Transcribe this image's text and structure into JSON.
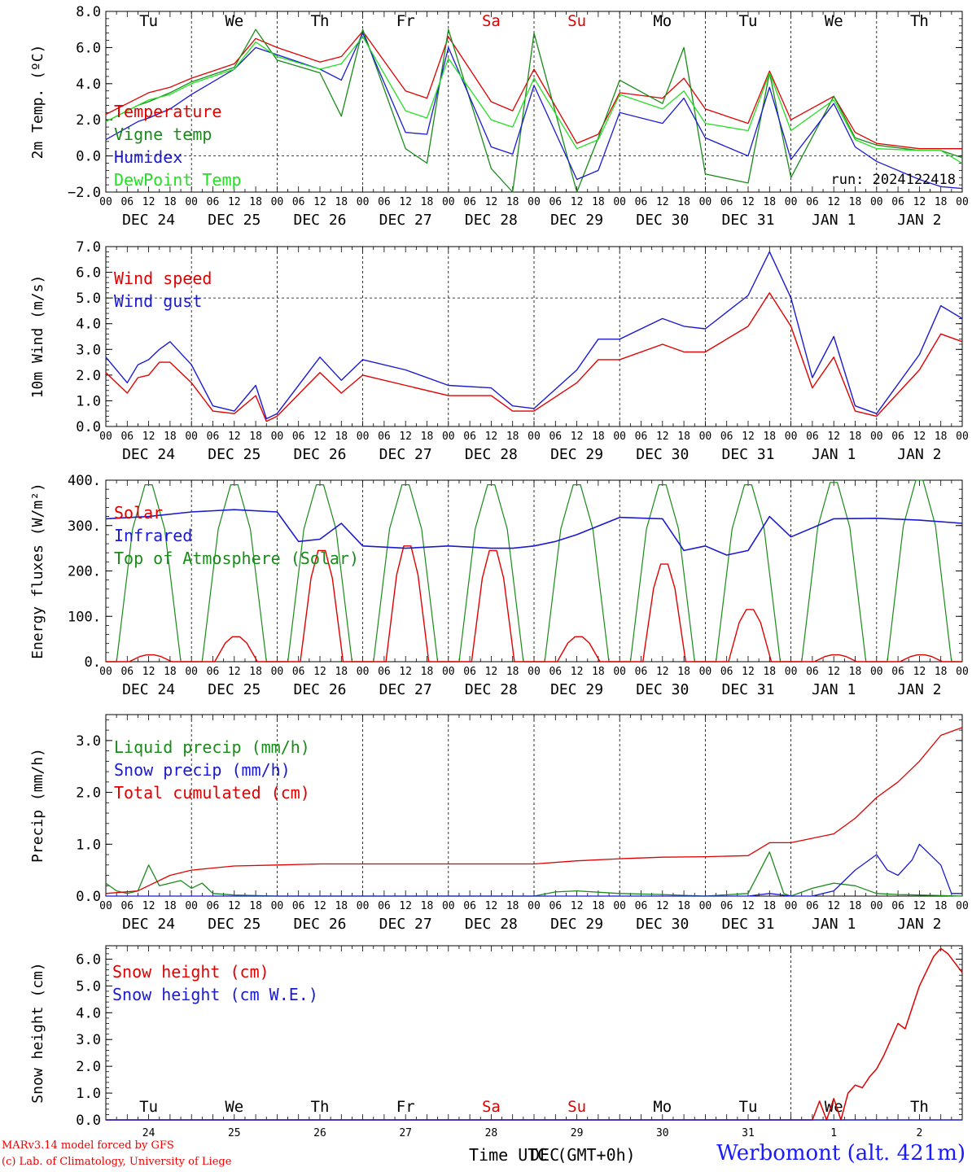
{
  "chart_data": [
    {
      "type": "line",
      "ylabel": "2m Temp. (ºC)",
      "ylim": [
        -2,
        8
      ],
      "y_ticks": [
        "8.0",
        "6.0",
        "4.0",
        "2.0",
        "0.0",
        "−2.0"
      ],
      "y_tick_values": [
        8,
        6,
        4,
        2,
        0,
        -2
      ],
      "ref_lines": [
        0
      ],
      "weekdays": [
        "Tu",
        "We",
        "Th",
        "Fr",
        "Sa",
        "Su",
        "Mo",
        "Tu",
        "We",
        "Th"
      ],
      "weekday_colors": [
        "#000000",
        "#000000",
        "#000000",
        "#000000",
        "#e00000",
        "#e00000",
        "#000000",
        "#000000",
        "#000000",
        "#000000"
      ],
      "run_label": "run: 2024122418",
      "x_hours": [
        0,
        9,
        12,
        18,
        24,
        36,
        42,
        48,
        60,
        66,
        72,
        84,
        90,
        96,
        108,
        114,
        120,
        132,
        138,
        144,
        156,
        162,
        168,
        180,
        186,
        192,
        204,
        210,
        216,
        228,
        234,
        240
      ],
      "series": [
        {
          "name": "Temperature",
          "color": "#e00000",
          "values": [
            2.3,
            3.2,
            3.5,
            3.8,
            4.3,
            5.1,
            6.5,
            6.0,
            5.2,
            5.5,
            6.9,
            3.6,
            3.2,
            6.6,
            3.0,
            2.5,
            4.8,
            0.7,
            1.2,
            3.5,
            3.2,
            4.3,
            2.6,
            1.8,
            4.7,
            2.0,
            3.3,
            1.3,
            0.7,
            0.4,
            0.4,
            0.4
          ]
        },
        {
          "name": "Vigne temp",
          "color": "#1a8a1a",
          "values": [
            1.9,
            2.8,
            3.0,
            3.5,
            4.1,
            4.9,
            7.0,
            5.3,
            4.6,
            2.2,
            7.0,
            0.4,
            -0.4,
            7.0,
            -0.7,
            -2.0,
            6.8,
            -2.0,
            1.0,
            4.2,
            2.9,
            6.0,
            -1.0,
            -1.5,
            4.6,
            -1.2,
            3.3,
            1.0,
            0.6,
            0.3,
            0.3,
            -0.1
          ]
        },
        {
          "name": "Humidex",
          "color": "#1a1ad0",
          "values": [
            0.9,
            1.9,
            2.1,
            2.6,
            3.4,
            4.8,
            6.0,
            5.6,
            4.8,
            4.2,
            6.8,
            1.3,
            1.2,
            6.0,
            0.5,
            0.1,
            3.9,
            -1.3,
            -0.8,
            2.4,
            1.8,
            3.2,
            1.0,
            0.0,
            3.8,
            -0.2,
            2.9,
            0.5,
            -0.3,
            -1.3,
            -1.7,
            -1.8
          ]
        },
        {
          "name": "DewPoint Temp",
          "color": "#22e022",
          "values": [
            1.9,
            2.8,
            3.1,
            3.4,
            4.0,
            4.8,
            6.3,
            5.5,
            4.8,
            5.1,
            6.6,
            2.5,
            2.1,
            5.4,
            2.0,
            1.6,
            4.3,
            0.4,
            0.9,
            3.4,
            2.6,
            3.6,
            1.8,
            1.4,
            4.6,
            1.4,
            3.1,
            0.9,
            0.4,
            0.3,
            0.3,
            -0.4
          ]
        }
      ]
    },
    {
      "type": "line",
      "ylabel": "10m Wind (m/s)",
      "ylim": [
        0,
        7
      ],
      "y_ticks": [
        "7.0",
        "6.0",
        "5.0",
        "4.0",
        "3.0",
        "2.0",
        "1.0",
        "0.0"
      ],
      "y_tick_values": [
        7,
        6,
        5,
        4,
        3,
        2,
        1,
        0
      ],
      "ref_lines": [
        5
      ],
      "x_hours": [
        0,
        6,
        9,
        12,
        15,
        18,
        24,
        30,
        36,
        42,
        45,
        48,
        60,
        66,
        72,
        84,
        96,
        108,
        114,
        120,
        132,
        138,
        144,
        156,
        162,
        168,
        180,
        186,
        192,
        198,
        204,
        210,
        216,
        228,
        234,
        240
      ],
      "series": [
        {
          "name": "Wind speed",
          "color": "#e00000",
          "values": [
            2.1,
            1.3,
            1.9,
            2.0,
            2.5,
            2.5,
            1.7,
            0.6,
            0.5,
            1.2,
            0.2,
            0.4,
            2.1,
            1.3,
            2.0,
            1.6,
            1.2,
            1.2,
            0.6,
            0.6,
            1.7,
            2.6,
            2.6,
            3.2,
            2.9,
            2.9,
            3.9,
            5.2,
            3.9,
            1.5,
            2.7,
            0.6,
            0.4,
            2.2,
            3.6,
            3.3
          ]
        },
        {
          "name": "Wind gust",
          "color": "#1a1ad0",
          "values": [
            2.7,
            1.7,
            2.4,
            2.6,
            3.0,
            3.3,
            2.4,
            0.8,
            0.6,
            1.6,
            0.3,
            0.5,
            2.7,
            1.8,
            2.6,
            2.2,
            1.6,
            1.5,
            0.8,
            0.7,
            2.2,
            3.4,
            3.4,
            4.2,
            3.9,
            3.8,
            5.1,
            6.8,
            5.0,
            1.9,
            3.5,
            0.8,
            0.5,
            2.8,
            4.7,
            4.2
          ]
        }
      ]
    },
    {
      "type": "line",
      "ylabel": "Energy fluxes (W/m²)",
      "ylim": [
        0,
        400
      ],
      "y_ticks": [
        "400.",
        "300.",
        "200.",
        "100.",
        "0."
      ],
      "y_tick_values": [
        400,
        300,
        200,
        100,
        0
      ],
      "series": [
        {
          "name": "Solar",
          "color": "#e00000",
          "peaks": [
            15,
            55,
            245,
            255,
            245,
            55,
            215,
            115,
            15,
            15
          ]
        },
        {
          "name": "Infrared",
          "color": "#1a1ad0",
          "x_hours": [
            0,
            12,
            24,
            36,
            48,
            54,
            60,
            66,
            72,
            84,
            96,
            108,
            114,
            120,
            126,
            132,
            144,
            156,
            162,
            168,
            174,
            180,
            186,
            192,
            204,
            216,
            228,
            240
          ],
          "values": [
            315,
            320,
            330,
            335,
            330,
            265,
            270,
            305,
            255,
            250,
            255,
            250,
            250,
            255,
            265,
            280,
            318,
            315,
            245,
            255,
            235,
            245,
            320,
            275,
            315,
            316,
            312,
            305
          ]
        },
        {
          "name": "Top of Atmosphere (Solar)",
          "color": "#1a8a1a",
          "peaks": [
            390,
            390,
            390,
            390,
            390,
            390,
            390,
            390,
            395,
            400
          ]
        }
      ]
    },
    {
      "type": "line",
      "ylabel": "Precip (mm/h)",
      "ylim": [
        0,
        3.5
      ],
      "y_ticks": [
        "3.0",
        "2.0",
        "1.0",
        "0.0"
      ],
      "y_tick_values": [
        3,
        2,
        1,
        0
      ],
      "series": [
        {
          "name": "Liquid precip (mm/h)",
          "color": "#1a8a1a",
          "x_hours": [
            0,
            3,
            6,
            9,
            12,
            15,
            18,
            21,
            24,
            27,
            30,
            36,
            48,
            60,
            120,
            126,
            132,
            144,
            156,
            168,
            180,
            186,
            190,
            192,
            198,
            204,
            210,
            216,
            222,
            228,
            240
          ],
          "values": [
            0.25,
            0.1,
            0.05,
            0.1,
            0.6,
            0.2,
            0.25,
            0.3,
            0.15,
            0.25,
            0.05,
            0.02,
            0,
            0,
            0,
            0.08,
            0.1,
            0.05,
            0.03,
            0,
            0.05,
            0.85,
            0.05,
            0,
            0.15,
            0.25,
            0.2,
            0.05,
            0.03,
            0.02,
            0
          ]
        },
        {
          "name": "Snow precip (mm/h)",
          "color": "#1a1ad0",
          "x_hours": [
            0,
            180,
            186,
            192,
            198,
            204,
            210,
            216,
            219,
            222,
            226,
            228,
            234,
            237,
            240
          ],
          "values": [
            0,
            0,
            0.05,
            0,
            0,
            0.1,
            0.5,
            0.8,
            0.5,
            0.4,
            0.7,
            1.0,
            0.6,
            0.05,
            0.05
          ]
        },
        {
          "name": "Total cumulated (cm)",
          "color": "#e00000",
          "x_hours": [
            0,
            9,
            18,
            24,
            36,
            48,
            60,
            72,
            84,
            96,
            120,
            132,
            144,
            156,
            168,
            180,
            186,
            192,
            204,
            210,
            216,
            222,
            228,
            234,
            240
          ],
          "values": [
            0.05,
            0.1,
            0.4,
            0.5,
            0.58,
            0.6,
            0.62,
            0.62,
            0.62,
            0.62,
            0.62,
            0.68,
            0.72,
            0.75,
            0.76,
            0.78,
            1.03,
            1.03,
            1.2,
            1.5,
            1.9,
            2.2,
            2.6,
            3.1,
            3.25
          ]
        }
      ]
    },
    {
      "type": "line",
      "ylabel": "Snow height (cm)",
      "ylim": [
        0,
        6.5
      ],
      "y_ticks": [
        "6.0",
        "5.0",
        "4.0",
        "3.0",
        "2.0",
        "1.0",
        "0.0"
      ],
      "y_tick_values": [
        6,
        5,
        4,
        3,
        2,
        1,
        0
      ],
      "day_labels": [
        "24",
        "25",
        "26",
        "27",
        "28",
        "29",
        "30",
        "31",
        "1",
        "2"
      ],
      "weekdays": [
        "Tu",
        "We",
        "Th",
        "Fr",
        "Sa",
        "Su",
        "Mo",
        "Tu",
        "We",
        "Th"
      ],
      "weekday_colors": [
        "#000000",
        "#000000",
        "#000000",
        "#000000",
        "#e00000",
        "#e00000",
        "#000000",
        "#000000",
        "#000000",
        "#000000"
      ],
      "xlabel": "Time UTC (GMT+0h)",
      "month_mark": "DEC",
      "series": [
        {
          "name": "Snow height (cm)",
          "color": "#e00000",
          "x_hours": [
            0,
            198,
            200,
            202,
            204,
            206,
            208,
            210,
            212,
            214,
            216,
            218,
            222,
            224,
            228,
            232,
            234,
            236,
            240
          ],
          "values": [
            0,
            0,
            0.7,
            0,
            0.8,
            0,
            1.0,
            1.3,
            1.2,
            1.6,
            1.9,
            2.4,
            3.6,
            3.4,
            5.0,
            6.1,
            6.4,
            6.2,
            5.5
          ]
        },
        {
          "name": "Snow height (cm W.E.)",
          "color": "#1a1ad0",
          "x_hours": [
            0,
            240
          ],
          "values": [
            0,
            0
          ]
        }
      ]
    }
  ],
  "x_axis": {
    "hour_ticks": [
      "00",
      "06",
      "12",
      "18"
    ],
    "dates": [
      "DEC 24",
      "DEC 25",
      "DEC 26",
      "DEC 27",
      "DEC 28",
      "DEC 29",
      "DEC 30",
      "DEC 31",
      "JAN  1",
      "JAN  2"
    ]
  },
  "footer": {
    "model_credit": "MARv3.14 model forced by GFS",
    "lab_credit": "(c) Lab. of Climatology, University of Liege",
    "station": "Werbomont (alt. 421m)"
  }
}
